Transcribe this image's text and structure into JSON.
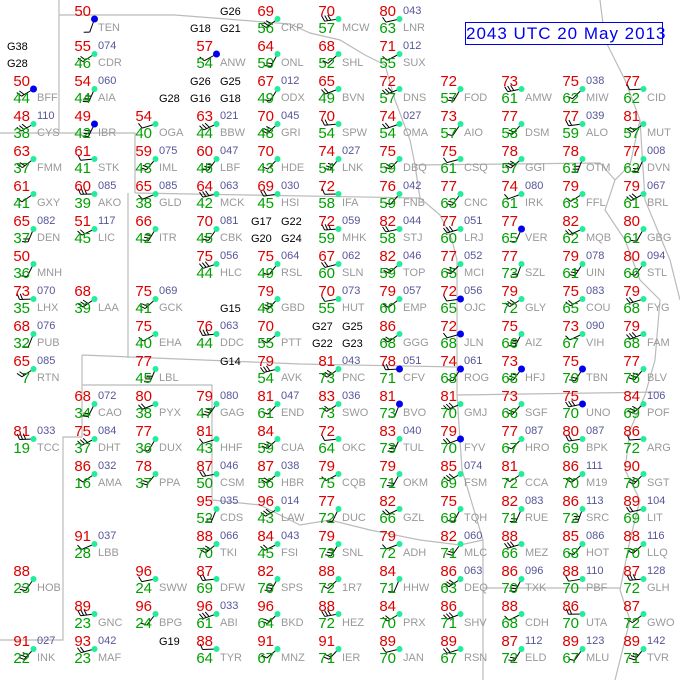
{
  "title": "2043 UTC 20 May 2013",
  "colors": {
    "temperature": "#dd0000",
    "dewpoint": "#00a000",
    "pressure": "#555599",
    "station_id": "#999999",
    "station_marker": "#22ee99",
    "precip_marker": "#0000ee",
    "title": "#0000ee"
  },
  "stations": [
    {
      "id": "TEN",
      "t": "50",
      "d": ""
    },
    {
      "id": "CDR",
      "t": "55",
      "d": "46",
      "p": "074"
    },
    {
      "id": "AIA",
      "t": "54",
      "d": "44",
      "p": "060"
    },
    {
      "id": "ANW",
      "t": "57",
      "d": "54"
    },
    {
      "id": "ONL",
      "t": "64",
      "d": "50"
    },
    {
      "id": "BBW",
      "t": "63",
      "d": "44",
      "p": "021"
    },
    {
      "id": "ODX",
      "t": "67",
      "d": "49",
      "p": "012"
    },
    {
      "id": "BVN",
      "t": "65",
      "d": "49"
    },
    {
      "id": "LBF",
      "t": "60",
      "d": "46",
      "p": "047"
    },
    {
      "id": "OGA",
      "t": "54",
      "d": "40"
    },
    {
      "id": "IML",
      "t": "59",
      "d": "43",
      "p": "075"
    },
    {
      "id": "MCK",
      "t": "64",
      "d": "42",
      "p": "063"
    },
    {
      "id": "HDE",
      "t": "70",
      "d": "43"
    },
    {
      "id": "HSI",
      "t": "69",
      "d": "45",
      "p": "030"
    },
    {
      "id": "GRI",
      "t": "70",
      "d": "48",
      "p": "045"
    },
    {
      "id": "STK",
      "t": "61",
      "d": "41"
    },
    {
      "id": "FMM",
      "t": "63",
      "d": "37"
    },
    {
      "id": "AKO",
      "t": "60",
      "d": "39",
      "p": "085"
    },
    {
      "id": "GXY",
      "t": "61",
      "d": "41"
    },
    {
      "id": "DEN",
      "t": "65",
      "d": "37",
      "p": "082"
    },
    {
      "id": "CYS",
      "t": "48",
      "d": "38",
      "p": "110"
    },
    {
      "id": "MNH",
      "t": "50",
      "d": "36"
    },
    {
      "id": "LIC",
      "t": "51",
      "d": "45",
      "p": "117"
    },
    {
      "id": "ITR",
      "t": "66",
      "d": "42"
    },
    {
      "id": "GLD",
      "t": "65",
      "d": "38",
      "p": "085"
    },
    {
      "id": "CBK",
      "t": "70",
      "d": "45",
      "p": "081"
    },
    {
      "id": "HLC",
      "t": "75",
      "d": "44",
      "p": "056"
    },
    {
      "id": "RSL",
      "t": "75",
      "d": "49",
      "p": "064"
    },
    {
      "id": "SLN",
      "t": "67",
      "d": "60",
      "p": "062"
    },
    {
      "id": "GBD",
      "t": "79",
      "d": "48"
    },
    {
      "id": "HUT",
      "t": "70",
      "d": "55",
      "p": "073"
    },
    {
      "id": "GCK",
      "t": "75",
      "d": "41",
      "p": "069"
    },
    {
      "id": "DDC",
      "t": "76",
      "d": "44",
      "p": "063"
    },
    {
      "id": "PTT",
      "t": "70",
      "d": "55"
    },
    {
      "id": "LHX",
      "t": "73",
      "d": "35",
      "p": "070"
    },
    {
      "id": "LAA",
      "t": "68",
      "d": "39"
    },
    {
      "id": "PUB",
      "t": "68",
      "d": "32",
      "p": "076"
    },
    {
      "id": "BFF",
      "t": "50",
      "d": "44"
    },
    {
      "id": "IBR",
      "t": "49",
      "d": "42"
    },
    {
      "id": "SUX",
      "t": "71",
      "d": "55",
      "p": "012"
    },
    {
      "id": "FOD",
      "t": "72",
      "d": "57"
    },
    {
      "id": "DNS",
      "t": "72",
      "d": "57"
    },
    {
      "id": "AIO",
      "t": "73",
      "d": "57"
    },
    {
      "id": "OMA",
      "t": "74",
      "d": "54",
      "p": "027"
    },
    {
      "id": "LNK",
      "t": "74",
      "d": "54",
      "p": "027"
    },
    {
      "id": "CSQ",
      "t": "75",
      "d": "61"
    },
    {
      "id": "DSM",
      "t": "77",
      "d": "58"
    },
    {
      "id": "AMW",
      "t": "73",
      "d": "61"
    },
    {
      "id": "MIW",
      "t": "75",
      "d": "62",
      "p": "038"
    },
    {
      "id": "ALO",
      "t": "77",
      "d": "59",
      "p": "039"
    },
    {
      "id": "GGI",
      "t": "78",
      "d": "57"
    },
    {
      "id": "CID",
      "t": "77",
      "d": "62"
    },
    {
      "id": "MUT",
      "t": "81",
      "d": "57"
    },
    {
      "id": "OTM",
      "t": "78",
      "d": "61"
    },
    {
      "id": "FFL",
      "t": "79",
      "d": "63"
    },
    {
      "id": "DVN",
      "t": "77",
      "d": "62",
      "p": "008"
    },
    {
      "id": "BRL",
      "t": "79",
      "d": "61",
      "p": "067"
    },
    {
      "id": "GBG",
      "t": "80",
      "d": "61"
    },
    {
      "id": "MQB",
      "t": "82",
      "d": "62"
    },
    {
      "id": "UIN",
      "t": "79",
      "d": "61",
      "p": "078"
    },
    {
      "id": "IRK",
      "t": "74",
      "d": "61",
      "p": "080"
    },
    {
      "id": "CNC",
      "t": "77",
      "d": "63"
    },
    {
      "id": "LRJ",
      "t": "77",
      "d": "60",
      "p": "051"
    },
    {
      "id": "FNB",
      "t": "76",
      "d": "59",
      "p": "042"
    },
    {
      "id": "STJ",
      "t": "82",
      "d": "58",
      "p": "044"
    },
    {
      "id": "MCI",
      "t": "77",
      "d": "65",
      "p": "052"
    },
    {
      "id": "OJC",
      "t": "72",
      "d": "65",
      "p": "056"
    },
    {
      "id": "TOP",
      "t": "82",
      "d": "59",
      "p": "046"
    },
    {
      "id": "MHK",
      "t": "72",
      "d": "59",
      "p": "059"
    },
    {
      "id": "EMP",
      "t": "79",
      "d": "60",
      "p": "057"
    },
    {
      "id": "SZL",
      "t": "77",
      "d": "73"
    },
    {
      "id": "GLY",
      "t": "79",
      "d": "72"
    },
    {
      "id": "VER",
      "t": "77",
      "d": "65"
    },
    {
      "id": "COU",
      "t": "75",
      "d": "65",
      "p": "083"
    },
    {
      "id": "AIZ",
      "t": "75",
      "d": "66"
    },
    {
      "id": "VIH",
      "t": "73",
      "d": "67",
      "p": "090"
    },
    {
      "id": "TBN",
      "t": "75",
      "d": "70"
    },
    {
      "id": "FAM",
      "t": "79",
      "d": "68"
    },
    {
      "id": "STL",
      "t": "80",
      "d": "66",
      "p": "094"
    },
    {
      "id": "FYG",
      "t": "79",
      "d": "68"
    },
    {
      "id": "BLV",
      "t": "77",
      "d": "76"
    },
    {
      "id": "LNR",
      "t": "80",
      "d": "63",
      "p": "043"
    },
    {
      "id": "DBQ",
      "t": "75",
      "d": "59"
    },
    {
      "id": "MCW",
      "t": "70",
      "d": "57"
    },
    {
      "id": "SHL",
      "t": "68",
      "d": "52"
    },
    {
      "id": "SPW",
      "t": "70",
      "d": "54"
    },
    {
      "id": "CKP",
      "t": "69",
      "d": "56"
    },
    {
      "id": "IFA",
      "t": "72",
      "d": "58"
    },
    {
      "id": "RTN",
      "t": "65",
      "d": "7",
      "p": "085"
    },
    {
      "id": "LBL",
      "t": "77",
      "d": "45"
    },
    {
      "id": "EHA",
      "t": "75",
      "d": "40"
    },
    {
      "id": "CAO",
      "t": "68",
      "d": "34",
      "p": "072"
    },
    {
      "id": "DHT",
      "t": "75",
      "d": "37",
      "p": "084"
    },
    {
      "id": "DUX",
      "t": "77",
      "d": "36"
    },
    {
      "id": "PYX",
      "t": "80",
      "d": "38"
    },
    {
      "id": "GAG",
      "t": "79",
      "d": "47",
      "p": "080"
    },
    {
      "id": "HHF",
      "t": "81",
      "d": "43"
    },
    {
      "id": "PPA",
      "t": "78",
      "d": "37"
    },
    {
      "id": "AVK",
      "t": "79",
      "d": "54"
    },
    {
      "id": "END",
      "t": "81",
      "d": "61",
      "p": "047"
    },
    {
      "id": "CSM",
      "t": "87",
      "d": "50",
      "p": "046"
    },
    {
      "id": "CUA",
      "t": "84",
      "d": "59"
    },
    {
      "id": "OKC",
      "t": "72",
      "d": "64"
    },
    {
      "id": "HBR",
      "t": "87",
      "d": "56",
      "p": "038"
    },
    {
      "id": "TCC",
      "t": "81",
      "d": "19",
      "p": "033"
    },
    {
      "id": "AMA",
      "t": "86",
      "d": "16",
      "p": "032"
    },
    {
      "id": "CDS",
      "t": "95",
      "d": "52",
      "p": "035"
    },
    {
      "id": "LAW",
      "t": "96",
      "d": "43",
      "p": "014"
    },
    {
      "id": "DUC",
      "t": "77",
      "d": "72"
    },
    {
      "id": "FSI",
      "t": "84",
      "d": "45",
      "p": "043"
    },
    {
      "id": "SPS",
      "t": "82",
      "d": "70"
    },
    {
      "id": "LBB",
      "t": "91",
      "d": "28",
      "p": "037"
    },
    {
      "id": "HOB",
      "t": "88",
      "d": "23"
    },
    {
      "id": "ABI",
      "t": "96",
      "d": "61",
      "p": "033"
    },
    {
      "id": "BPG",
      "t": "96",
      "d": "24"
    },
    {
      "id": "MAF",
      "t": "93",
      "d": "23",
      "p": "042"
    },
    {
      "id": "INK",
      "t": "91",
      "d": "22",
      "p": "027"
    },
    {
      "id": "SWW",
      "t": "96",
      "d": "24"
    },
    {
      "id": "BKD",
      "t": "96",
      "d": "64"
    },
    {
      "id": "GNC",
      "t": "89",
      "d": "23"
    },
    {
      "id": "MNZ",
      "t": "91",
      "d": "67"
    },
    {
      "id": "CFV",
      "t": "78",
      "d": "71",
      "p": "051"
    },
    {
      "id": "PNC",
      "t": "81",
      "d": "73",
      "p": "043"
    },
    {
      "id": "BVO",
      "t": "81",
      "d": "73"
    },
    {
      "id": "SWO",
      "t": "83",
      "d": "73",
      "p": "036"
    },
    {
      "id": "TUL",
      "t": "83",
      "d": "73",
      "p": "040"
    },
    {
      "id": "CQB",
      "t": "79",
      "d": "75"
    },
    {
      "id": "OKM",
      "t": "79",
      "d": "71"
    },
    {
      "id": "GMJ",
      "t": "81",
      "d": "70"
    },
    {
      "id": "ROG",
      "t": "74",
      "d": "68",
      "p": "061"
    },
    {
      "id": "FYV",
      "t": "79",
      "d": "70"
    },
    {
      "id": "HFJ",
      "t": "73",
      "d": "68"
    },
    {
      "id": "JLN",
      "t": "72",
      "d": "68"
    },
    {
      "id": "SGF",
      "t": "73",
      "d": "66"
    },
    {
      "id": "UNO",
      "t": "75",
      "d": "70"
    },
    {
      "id": "HRO",
      "t": "77",
      "d": "67",
      "p": "087"
    },
    {
      "id": "BPK",
      "t": "80",
      "d": "69",
      "p": "087"
    },
    {
      "id": "POF",
      "t": "84",
      "d": "69",
      "p": "106"
    },
    {
      "id": "ARG",
      "t": "86",
      "d": "72"
    },
    {
      "id": "M19",
      "t": "86",
      "d": "70",
      "p": "111"
    },
    {
      "id": "SRC",
      "t": "86",
      "d": "72",
      "p": "113"
    },
    {
      "id": "CCA",
      "t": "81",
      "d": "72"
    },
    {
      "id": "RUE",
      "t": "82",
      "d": "71",
      "p": "083"
    },
    {
      "id": "FSM",
      "t": "85",
      "d": "69",
      "p": "074"
    },
    {
      "id": "TQH",
      "t": "75",
      "d": "68"
    },
    {
      "id": "GZL",
      "t": "82",
      "d": "66"
    },
    {
      "id": "SNL",
      "t": "79",
      "d": "73"
    },
    {
      "id": "ADH",
      "t": "79",
      "d": "72"
    },
    {
      "id": "MLC",
      "t": "82",
      "d": "71",
      "p": "060"
    },
    {
      "id": "MEZ",
      "t": "88",
      "d": "66"
    },
    {
      "id": "HOT",
      "t": "85",
      "d": "68",
      "p": "086"
    },
    {
      "id": "LIT",
      "t": "89",
      "d": "69",
      "p": "104"
    },
    {
      "id": "SGT",
      "t": "90",
      "d": "70"
    },
    {
      "id": "PBF",
      "t": "88",
      "d": "70",
      "p": "110"
    },
    {
      "id": "LLQ",
      "t": "88",
      "d": "70",
      "p": "116"
    },
    {
      "id": "GLH",
      "t": "87",
      "d": "72",
      "p": "128"
    },
    {
      "id": "GWO",
      "t": "87",
      "d": "72"
    },
    {
      "id": "UTA",
      "t": "86",
      "d": "70"
    },
    {
      "id": "DEQ",
      "t": "86",
      "d": "63",
      "p": "063"
    },
    {
      "id": "HHW",
      "t": "84",
      "d": "71"
    },
    {
      "id": "PRX",
      "t": "84",
      "d": "70"
    },
    {
      "id": "TXK",
      "t": "86",
      "d": "70",
      "p": "096"
    },
    {
      "id": "CDH",
      "t": "88",
      "d": "68"
    },
    {
      "id": "ELD",
      "t": "87",
      "d": "72",
      "p": "112"
    },
    {
      "id": "SHV",
      "t": "86",
      "d": "71"
    },
    {
      "id": "MLU",
      "t": "89",
      "d": "67",
      "p": "123"
    },
    {
      "id": "RSN",
      "t": "89",
      "d": "67"
    },
    {
      "id": "TVR",
      "t": "89",
      "d": "71",
      "p": "142"
    },
    {
      "id": "JAN",
      "t": "89",
      "d": "70"
    },
    {
      "id": "IER",
      "t": "91",
      "d": "71"
    },
    {
      "id": "HEZ",
      "t": "88",
      "d": "72"
    },
    {
      "id": "1R7",
      "t": "88",
      "d": "72"
    },
    {
      "id": "DFW",
      "t": "87",
      "d": "69"
    },
    {
      "id": "TKI",
      "t": "88",
      "d": "70",
      "p": "066"
    },
    {
      "id": "TYR",
      "t": "88",
      "d": "64"
    },
    {
      "id": "GGG",
      "t": "86",
      "d": "68"
    }
  ],
  "gusts": [
    "G38",
    "G28",
    "G25",
    "G26",
    "G28",
    "G18",
    "G21",
    "G26",
    "G22",
    "G24",
    "G25",
    "G23",
    "G27",
    "G22",
    "G17",
    "G20",
    "G15",
    "G14",
    "G19",
    "G16",
    "G18"
  ]
}
